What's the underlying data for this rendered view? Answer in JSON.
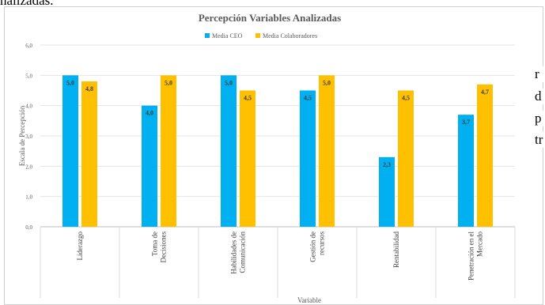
{
  "top_fragment": "nalizadas.",
  "side_fragments": [
    "r",
    "d",
    "p",
    "tr"
  ],
  "chart_data": {
    "type": "bar",
    "title": "Percepción Variables Analizadas",
    "xlabel": "Variable",
    "ylabel": "Escala de Percepción",
    "ylim": [
      0,
      6
    ],
    "yticks": [
      "0,0",
      "1,0",
      "2,0",
      "3,0",
      "4,0",
      "5,0",
      "6,0"
    ],
    "legend_position": "top",
    "grid": true,
    "categories": [
      "Liderazgo",
      "Toma de Decisiones",
      "Habilidades de Comunicación",
      "Gestión de recursos",
      "Rentabilidad",
      "Penetración en el Mercado"
    ],
    "category_lines": [
      [
        "Liderazgo"
      ],
      [
        "Toma de",
        "Decisiones"
      ],
      [
        "Habilidades de",
        "Comunicación"
      ],
      [
        "Gestión de",
        "recursos"
      ],
      [
        "Rentabilidad"
      ],
      [
        "Penetración en el",
        "Mercado"
      ]
    ],
    "series": [
      {
        "name": "Media CEO",
        "color": "#00b0f0",
        "values": [
          5.0,
          4.0,
          5.0,
          4.5,
          2.3,
          3.7
        ],
        "labels": [
          "5,0",
          "4,0",
          "5,0",
          "4,5",
          "2,3",
          "3,7"
        ]
      },
      {
        "name": "Media Colaboradores",
        "color": "#ffc000",
        "values": [
          4.8,
          5.0,
          4.5,
          5.0,
          4.5,
          4.7
        ],
        "labels": [
          "4,8",
          "5,0",
          "4,5",
          "5,0",
          "4,5",
          "4,7"
        ]
      }
    ]
  }
}
